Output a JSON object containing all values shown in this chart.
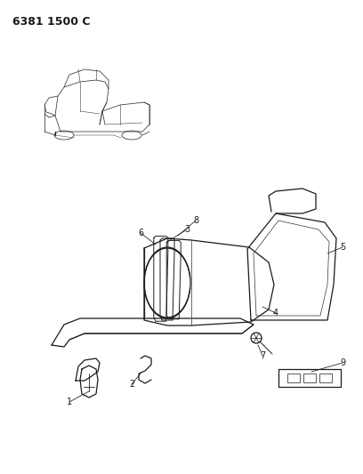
{
  "title": "6381 1500 C",
  "bg_color": "#ffffff",
  "line_color": "#1a1a1a",
  "figsize": [
    4.08,
    5.33
  ],
  "dpi": 100
}
